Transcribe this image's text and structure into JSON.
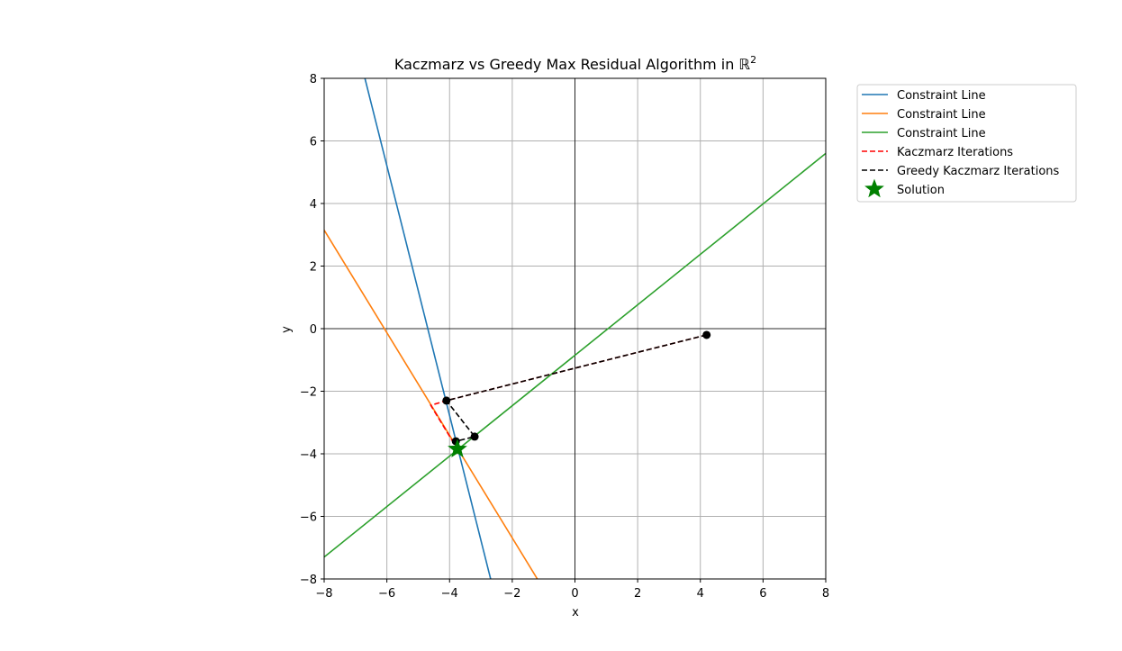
{
  "chart_data": {
    "type": "line",
    "title": "Kaczmarz vs Greedy Max Residual Algorithm in ℝ",
    "title_superscript": "2",
    "xlabel": "x",
    "ylabel": "y",
    "xlim": [
      -8,
      8
    ],
    "ylim": [
      -8,
      8
    ],
    "xticks": [
      -8,
      -6,
      -4,
      -2,
      0,
      2,
      4,
      6,
      8
    ],
    "yticks": [
      -8,
      -6,
      -4,
      -2,
      0,
      2,
      4,
      6,
      8
    ],
    "tick_labels": {
      "x": [
        "−8",
        "−6",
        "−4",
        "−2",
        "0",
        "2",
        "4",
        "6",
        "8"
      ],
      "y": [
        "−8",
        "−6",
        "−4",
        "−2",
        "0",
        "2",
        "4",
        "6",
        "8"
      ]
    },
    "grid": true,
    "legend_position": "outside-right",
    "constraint_lines": [
      {
        "name": "Constraint Line",
        "color": "#1f77b4",
        "x": [
          -6.7,
          -2.69
        ],
        "y": [
          8,
          -8
        ]
      },
      {
        "name": "Constraint Line",
        "color": "#ff7f0e",
        "x": [
          -8,
          -1.2
        ],
        "y": [
          3.15,
          -8
        ]
      },
      {
        "name": "Constraint Line",
        "color": "#2ca02c",
        "x": [
          -8,
          8
        ],
        "y": [
          -7.3,
          5.6
        ]
      }
    ],
    "kaczmarz_iterations": {
      "name": "Kaczmarz Iterations",
      "color": "#ff0000",
      "x": [
        4.2,
        -4.1,
        -4.6,
        -3.75
      ],
      "y": [
        -0.2,
        -2.3,
        -2.45,
        -3.85
      ]
    },
    "greedy_iterations": {
      "name": "Greedy Kaczmarz Iterations",
      "color": "#000000",
      "x": [
        4.2,
        -4.1,
        -3.2,
        -3.8,
        -3.75
      ],
      "y": [
        -0.2,
        -2.3,
        -3.45,
        -3.6,
        -3.85
      ]
    },
    "solution": {
      "name": "Solution",
      "color": "#008000",
      "x": -3.75,
      "y": -3.85
    },
    "legend": [
      {
        "label": "Constraint Line",
        "color": "#1f77b4",
        "style": "solid"
      },
      {
        "label": "Constraint Line",
        "color": "#ff7f0e",
        "style": "solid"
      },
      {
        "label": "Constraint Line",
        "color": "#2ca02c",
        "style": "solid"
      },
      {
        "label": "Kaczmarz Iterations",
        "color": "#ff0000",
        "style": "dashed"
      },
      {
        "label": "Greedy Kaczmarz Iterations",
        "color": "#000000",
        "style": "dashed"
      },
      {
        "label": "Solution",
        "color": "#008000",
        "style": "star"
      }
    ]
  }
}
